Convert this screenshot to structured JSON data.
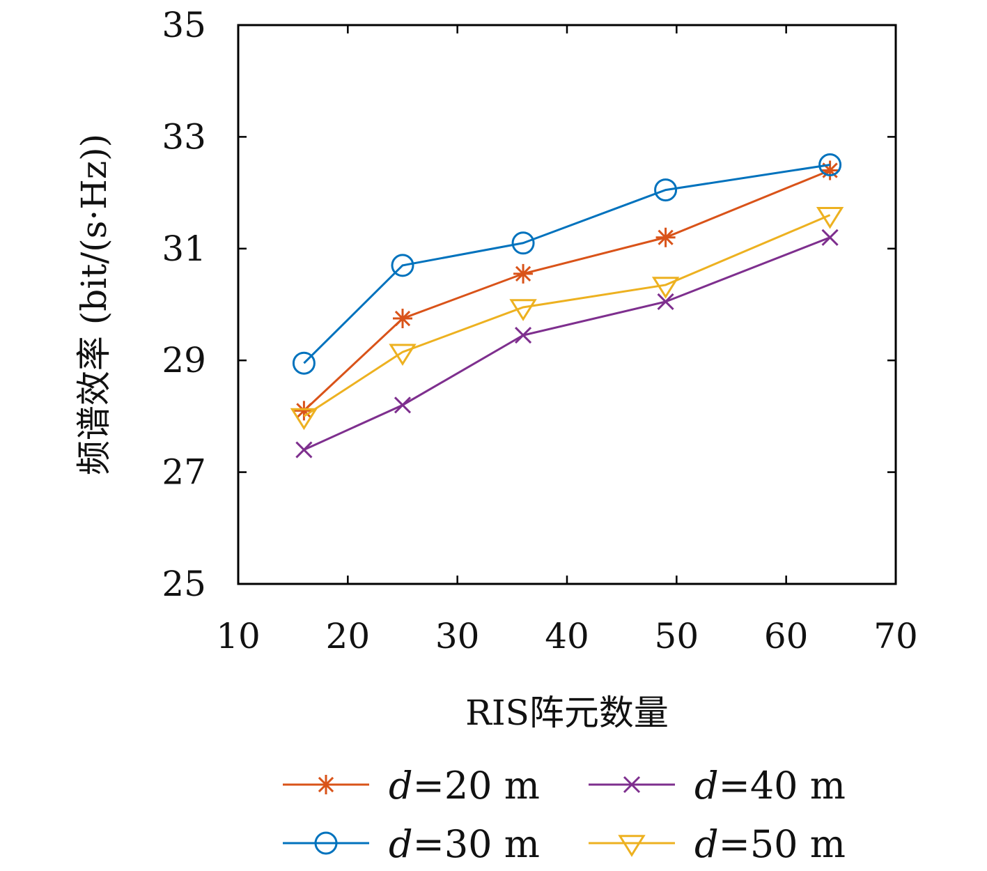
{
  "chart_data": {
    "type": "line",
    "title": "",
    "xlabel": "RIS阵元数量",
    "ylabel": "频谱效率 (bit/(s·Hz))",
    "xlim": [
      10,
      70
    ],
    "ylim": [
      25,
      35
    ],
    "xticks": [
      10,
      20,
      30,
      40,
      50,
      60,
      70
    ],
    "yticks": [
      25,
      27,
      29,
      31,
      33,
      35
    ],
    "grid": false,
    "legend_position": "bottom",
    "x": [
      16,
      25,
      36,
      49,
      64
    ],
    "series": [
      {
        "name": "d=20 m",
        "name_var": "d",
        "name_rest": "=20 m",
        "color": "#D95319",
        "marker": "asterisk",
        "values": [
          28.1,
          29.75,
          30.55,
          31.2,
          32.4
        ]
      },
      {
        "name": "d=30 m",
        "name_var": "d",
        "name_rest": "=30 m",
        "color": "#0072BD",
        "marker": "circle",
        "values": [
          28.95,
          30.7,
          31.1,
          32.05,
          32.5
        ]
      },
      {
        "name": "d=40 m",
        "name_var": "d",
        "name_rest": "=40 m",
        "color": "#7E2F8E",
        "marker": "x",
        "values": [
          27.4,
          28.2,
          29.45,
          30.05,
          31.2
        ]
      },
      {
        "name": "d=50 m",
        "name_var": "d",
        "name_rest": "=50 m",
        "color": "#EDB120",
        "marker": "triangle-down",
        "values": [
          28.0,
          29.15,
          29.95,
          30.35,
          31.6
        ]
      }
    ]
  }
}
